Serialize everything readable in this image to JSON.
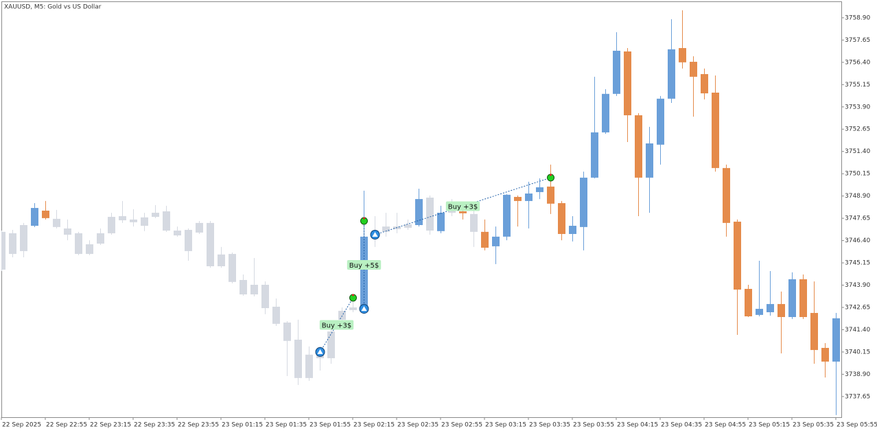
{
  "chart_data": {
    "type": "candlestick",
    "title": "XAUUSD, M5:  Gold vs US Dollar",
    "categories": [
      "22 Sep 2025",
      null,
      null,
      null,
      "22 Sep 22:55",
      null,
      null,
      null,
      "22 Sep 23:15",
      null,
      null,
      null,
      "22 Sep 23:35",
      null,
      null,
      null,
      "22 Sep 23:55",
      null,
      null,
      null,
      "23 Sep 01:15",
      null,
      null,
      null,
      "23 Sep 01:35",
      null,
      null,
      null,
      "23 Sep 01:55",
      null,
      null,
      null,
      "23 Sep 02:15",
      null,
      null,
      null,
      "23 Sep 02:35",
      null,
      null,
      null,
      "23 Sep 02:55",
      null,
      null,
      null,
      "23 Sep 03:15",
      null,
      null,
      null,
      "23 Sep 03:35",
      null,
      null,
      null,
      "23 Sep 03:55",
      null,
      null,
      null,
      "23 Sep 04:15",
      null,
      null,
      null,
      "23 Sep 04:35",
      null,
      null,
      null,
      "23 Sep 04:55",
      null,
      null,
      null,
      "23 Sep 05:15",
      null,
      null,
      null,
      "23 Sep 05:35",
      null,
      null,
      null,
      "23 Sep 05:55"
    ],
    "open": [
      3746.89,
      3745.65,
      3745.81,
      3747.23,
      3748.08,
      3747.62,
      3747.08,
      3746.81,
      3745.65,
      3746.23,
      3746.81,
      3747.54,
      3747.58,
      3747.23,
      3747.73,
      3748.04,
      3746.96,
      3745.81,
      3746.85,
      3747.39,
      3745.62,
      3745.65,
      3744.19,
      3743.38,
      3743.92,
      3742.69,
      3741.8,
      3740.84,
      3738.69,
      3739.8,
      3739.8,
      3741.96,
      3742.5,
      3742.57,
      3746.96,
      3746.89,
      3747.04,
      3747.12,
      3747.27,
      3748.81,
      3746.93,
      3747.96,
      3748.04,
      3747.89,
      3746.89,
      3746.08,
      3746.62,
      3748.85,
      3748.62,
      3749.12,
      3749.43,
      3748.5,
      3746.77,
      3747.16,
      3749.93,
      3752.47,
      3754.63,
      3757.01,
      3753.43,
      3749.93,
      3751.78,
      3754.36,
      3757.2,
      3756.43,
      3755.74,
      3754.7,
      3750.47,
      3747.46,
      3743.69,
      3742.23,
      3742.38,
      3742.84,
      3742.11,
      3744.23,
      3742.34,
      3740.38,
      3739.61
    ],
    "high": [
      3746.96,
      3747.0,
      3747.39,
      3748.5,
      3748.62,
      3748.12,
      3747.58,
      3746.89,
      3746.42,
      3747.08,
      3747.96,
      3748.62,
      3748.16,
      3747.96,
      3748.39,
      3748.35,
      3747.19,
      3747.08,
      3747.5,
      3747.5,
      3746.04,
      3745.73,
      3744.5,
      3745.42,
      3744.11,
      3743.15,
      3741.88,
      3741.96,
      3740.46,
      3740.46,
      3741.5,
      3742.65,
      3742.96,
      3749.2,
      3747.77,
      3747.96,
      3747.96,
      3747.58,
      3749.31,
      3748.93,
      3748.35,
      3748.73,
      3748.54,
      3748.16,
      3747.58,
      3747.19,
      3749.0,
      3748.93,
      3749.7,
      3749.89,
      3750.66,
      3748.62,
      3747.77,
      3750.27,
      3755.59,
      3754.89,
      3758.09,
      3757.2,
      3753.55,
      3752.78,
      3754.51,
      3758.82,
      3759.32,
      3756.74,
      3756.05,
      3755.66,
      3750.66,
      3747.58,
      3743.92,
      3745.27,
      3744.69,
      3743.54,
      3744.62,
      3744.5,
      3744.11,
      3740.65,
      3742.34
    ],
    "low": [
      3744.69,
      3745.46,
      3745.46,
      3747.16,
      3747.58,
      3747.08,
      3746.42,
      3745.58,
      3745.58,
      3746.16,
      3746.73,
      3747.39,
      3747.19,
      3746.93,
      3747.66,
      3746.89,
      3746.62,
      3745.27,
      3746.77,
      3744.88,
      3744.88,
      3744.0,
      3743.31,
      3743.27,
      3742.27,
      3741.61,
      3738.8,
      3738.3,
      3738.53,
      3739.11,
      3739.49,
      3741.8,
      3742.38,
      3742.38,
      3746.04,
      3746.62,
      3746.81,
      3747.0,
      3747.19,
      3746.73,
      3746.81,
      3747.77,
      3747.58,
      3746.04,
      3745.85,
      3745.08,
      3746.42,
      3747.19,
      3747.08,
      3748.73,
      3747.89,
      3746.42,
      3746.35,
      3745.85,
      3749.89,
      3752.39,
      3754.51,
      3751.93,
      3747.77,
      3747.96,
      3750.66,
      3754.12,
      3756.05,
      3753.35,
      3754.32,
      3750.27,
      3746.62,
      3741.11,
      3742.11,
      3742.15,
      3742.19,
      3740.07,
      3742.0,
      3742.0,
      3739.49,
      3738.72,
      3736.61
    ],
    "close": [
      3744.77,
      3746.81,
      3747.27,
      3748.23,
      3747.66,
      3747.16,
      3746.73,
      3745.65,
      3746.19,
      3746.81,
      3747.73,
      3747.77,
      3747.43,
      3747.7,
      3747.96,
      3746.96,
      3746.69,
      3747.0,
      3747.39,
      3744.96,
      3744.96,
      3744.08,
      3743.38,
      3743.92,
      3742.61,
      3741.73,
      3740.77,
      3738.69,
      3740.0,
      3740.26,
      3741.3,
      3742.46,
      3742.65,
      3746.62,
      3746.73,
      3747.19,
      3747.19,
      3747.31,
      3748.73,
      3746.96,
      3747.96,
      3748.43,
      3747.93,
      3746.89,
      3746.0,
      3746.62,
      3748.97,
      3748.62,
      3749.04,
      3749.39,
      3748.47,
      3746.77,
      3747.23,
      3749.93,
      3752.47,
      3754.63,
      3757.05,
      3753.43,
      3749.93,
      3751.85,
      3754.36,
      3757.13,
      3756.4,
      3755.59,
      3754.66,
      3750.47,
      3747.39,
      3743.65,
      3742.15,
      3742.57,
      3742.84,
      3742.11,
      3744.23,
      3742.11,
      3740.26,
      3739.61,
      3742.04
    ],
    "colors": [
      "#d5d9e1",
      "#d5d9e1",
      "#d5d9e1",
      "#6a9fd9",
      "#e58b4b",
      "#d5d9e1",
      "#d5d9e1",
      "#d5d9e1",
      "#d5d9e1",
      "#d5d9e1",
      "#d5d9e1",
      "#d5d9e1",
      "#d5d9e1",
      "#d5d9e1",
      "#d5d9e1",
      "#d5d9e1",
      "#d5d9e1",
      "#d5d9e1",
      "#d5d9e1",
      "#d5d9e1",
      "#d5d9e1",
      "#d5d9e1",
      "#d5d9e1",
      "#d5d9e1",
      "#d5d9e1",
      "#d5d9e1",
      "#d5d9e1",
      "#d5d9e1",
      "#d5d9e1",
      "#d5d9e1",
      "#d5d9e1",
      "#d5d9e1",
      "#d5d9e1",
      "#6a9fd9",
      "#d5d9e1",
      "#d5d9e1",
      "#d5d9e1",
      "#d5d9e1",
      "#6a9fd9",
      "#d5d9e1",
      "#6a9fd9",
      "#d5d9e1",
      "#e58b4b",
      "#d5d9e1",
      "#e58b4b",
      "#6a9fd9",
      "#6a9fd9",
      "#e58b4b",
      "#6a9fd9",
      "#6a9fd9",
      "#e58b4b",
      "#e58b4b",
      "#6a9fd9",
      "#6a9fd9",
      "#6a9fd9",
      "#6a9fd9",
      "#6a9fd9",
      "#e58b4b",
      "#e58b4b",
      "#6a9fd9",
      "#6a9fd9",
      "#6a9fd9",
      "#e58b4b",
      "#e58b4b",
      "#e58b4b",
      "#e58b4b",
      "#e58b4b",
      "#e58b4b",
      "#e58b4b",
      "#6a9fd9",
      "#6a9fd9",
      "#e58b4b",
      "#6a9fd9",
      "#e58b4b",
      "#e58b4b",
      "#e58b4b",
      "#6a9fd9"
    ],
    "trades": [
      {
        "label": "Buy +3$",
        "entry_index": 29,
        "entry_price": 3740.15,
        "exit_index": 32,
        "exit_price": 3743.19
      },
      {
        "label": "Buy +5$",
        "entry_index": 33,
        "entry_price": 3742.57,
        "exit_index": 33,
        "exit_price": 3747.5
      },
      {
        "label": "Buy +3$",
        "entry_index": 34,
        "entry_price": 3746.73,
        "exit_index": 50,
        "exit_price": 3749.93
      }
    ],
    "ylim": [
      3736.49,
      3759.82
    ],
    "yticks": [
      {
        "value": 3758.9,
        "label": "3758.90"
      },
      {
        "value": 3757.65,
        "label": "3757.65"
      },
      {
        "value": 3756.4,
        "label": "3756.40"
      },
      {
        "value": 3755.15,
        "label": "3755.15"
      },
      {
        "value": 3753.9,
        "label": "3753.90"
      },
      {
        "value": 3752.65,
        "label": "3752.65"
      },
      {
        "value": 3751.4,
        "label": "3751.40"
      },
      {
        "value": 3750.15,
        "label": "3750.15"
      },
      {
        "value": 3748.9,
        "label": "3748.90"
      },
      {
        "value": 3747.65,
        "label": "3747.65"
      },
      {
        "value": 3746.4,
        "label": "3746.40"
      },
      {
        "value": 3745.15,
        "label": "3745.15"
      },
      {
        "value": 3743.9,
        "label": "3743.90"
      },
      {
        "value": 3742.65,
        "label": "3742.65"
      },
      {
        "value": 3741.4,
        "label": "3741.40"
      },
      {
        "value": 3740.15,
        "label": "3740.15"
      },
      {
        "value": 3738.9,
        "label": "3738.90"
      },
      {
        "value": 3737.65,
        "label": "3737.65"
      }
    ],
    "grid": false
  }
}
